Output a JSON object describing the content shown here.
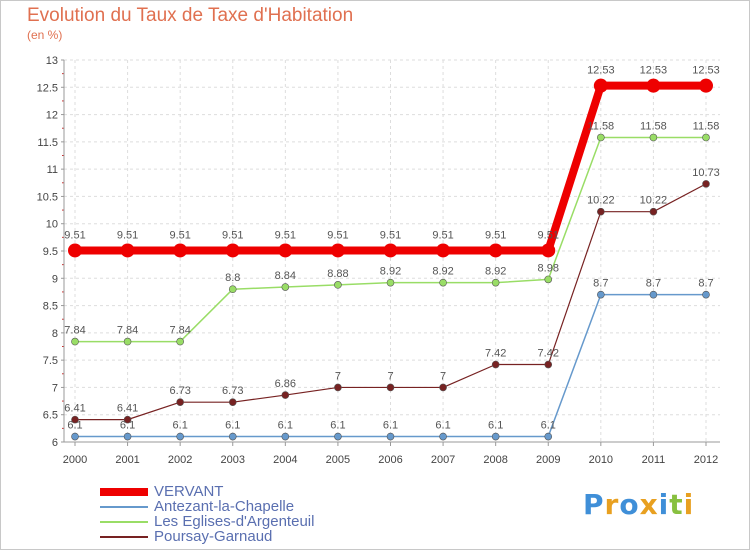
{
  "chart_data": {
    "type": "line",
    "title": "Evolution du Taux de Taxe d'Habitation",
    "unit": "(en %)",
    "x": [
      "2000",
      "2001",
      "2002",
      "2003",
      "2004",
      "2005",
      "2006",
      "2007",
      "2008",
      "2009",
      "2010",
      "2011",
      "2012"
    ],
    "ylim": [
      6,
      13
    ],
    "yticks": [
      "6",
      "6.5",
      "7",
      "7.5",
      "8",
      "8.5",
      "9",
      "9.5",
      "10",
      "10.5",
      "11",
      "11.5",
      "12",
      "12.5",
      "13"
    ],
    "grid": true,
    "legend_position": "bottom-left",
    "series": [
      {
        "name": "VERVANT",
        "color": "#ee0000",
        "values": [
          9.51,
          9.51,
          9.51,
          9.51,
          9.51,
          9.51,
          9.51,
          9.51,
          9.51,
          9.51,
          12.53,
          12.53,
          12.53
        ]
      },
      {
        "name": "Antezant-la-Chapelle",
        "color": "#6699cc",
        "values": [
          6.1,
          6.1,
          6.1,
          6.1,
          6.1,
          6.1,
          6.1,
          6.1,
          6.1,
          6.1,
          8.7,
          8.7,
          8.7
        ]
      },
      {
        "name": "Les Eglises-d'Argenteuil",
        "color": "#99dd66",
        "values": [
          7.84,
          7.84,
          7.84,
          8.8,
          8.84,
          8.88,
          8.92,
          8.92,
          8.92,
          8.98,
          11.58,
          11.58,
          11.58
        ]
      },
      {
        "name": "Poursay-Garnaud",
        "color": "#772222",
        "values": [
          6.41,
          6.41,
          6.73,
          6.73,
          6.86,
          7,
          7,
          7,
          7.42,
          7.42,
          10.22,
          10.22,
          10.73
        ]
      }
    ]
  },
  "brand": {
    "letters": [
      {
        "ch": "P",
        "color": "#3f8fd8"
      },
      {
        "ch": "r",
        "color": "#e8a020"
      },
      {
        "ch": "o",
        "color": "#3f8fd8"
      },
      {
        "ch": "x",
        "color": "#e8a020"
      },
      {
        "ch": "i",
        "color": "#3f8fd8"
      },
      {
        "ch": "t",
        "color": "#88c040"
      },
      {
        "ch": "i",
        "color": "#e8a020"
      }
    ]
  }
}
